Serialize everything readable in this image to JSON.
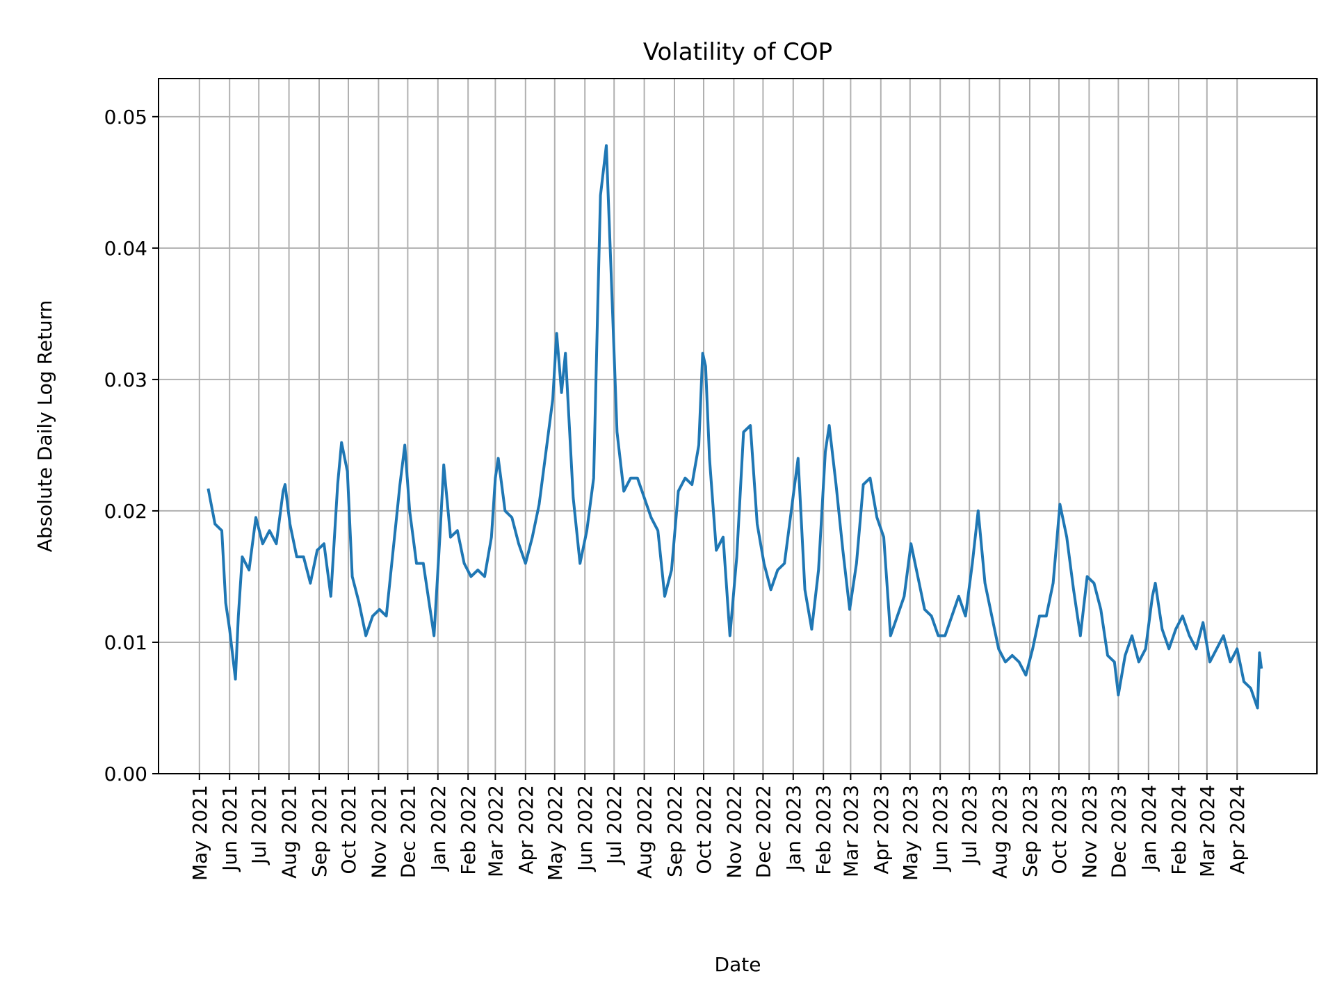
{
  "chart_data": {
    "type": "line",
    "title": "Volatility of COP",
    "xlabel": "Date",
    "ylabel": "Absolute Daily Log Return",
    "xlim": [
      "2021-03-20",
      "2024-06-22"
    ],
    "ylim": [
      0,
      0.0529
    ],
    "grid": true,
    "line_color": "#1f77b4",
    "yticks": [
      {
        "value": 0.0,
        "label": "0.00"
      },
      {
        "value": 0.01,
        "label": "0.01"
      },
      {
        "value": 0.02,
        "label": "0.02"
      },
      {
        "value": 0.03,
        "label": "0.03"
      },
      {
        "value": 0.04,
        "label": "0.04"
      },
      {
        "value": 0.05,
        "label": "0.05"
      }
    ],
    "xticks": [
      {
        "date": "2021-05-01",
        "label": "May 2021"
      },
      {
        "date": "2021-06-01",
        "label": "Jun 2021"
      },
      {
        "date": "2021-07-01",
        "label": "Jul 2021"
      },
      {
        "date": "2021-08-01",
        "label": "Aug 2021"
      },
      {
        "date": "2021-09-01",
        "label": "Sep 2021"
      },
      {
        "date": "2021-10-01",
        "label": "Oct 2021"
      },
      {
        "date": "2021-11-01",
        "label": "Nov 2021"
      },
      {
        "date": "2021-12-01",
        "label": "Dec 2021"
      },
      {
        "date": "2022-01-01",
        "label": "Jan 2022"
      },
      {
        "date": "2022-02-01",
        "label": "Feb 2022"
      },
      {
        "date": "2022-03-01",
        "label": "Mar 2022"
      },
      {
        "date": "2022-04-01",
        "label": "Apr 2022"
      },
      {
        "date": "2022-05-01",
        "label": "May 2022"
      },
      {
        "date": "2022-06-01",
        "label": "Jun 2022"
      },
      {
        "date": "2022-07-01",
        "label": "Jul 2022"
      },
      {
        "date": "2022-08-01",
        "label": "Aug 2022"
      },
      {
        "date": "2022-09-01",
        "label": "Sep 2022"
      },
      {
        "date": "2022-10-01",
        "label": "Oct 2022"
      },
      {
        "date": "2022-11-01",
        "label": "Nov 2022"
      },
      {
        "date": "2022-12-01",
        "label": "Dec 2022"
      },
      {
        "date": "2023-01-01",
        "label": "Jan 2023"
      },
      {
        "date": "2023-02-01",
        "label": "Feb 2023"
      },
      {
        "date": "2023-03-01",
        "label": "Mar 2023"
      },
      {
        "date": "2023-04-01",
        "label": "Apr 2023"
      },
      {
        "date": "2023-05-01",
        "label": "May 2023"
      },
      {
        "date": "2023-06-01",
        "label": "Jun 2023"
      },
      {
        "date": "2023-07-01",
        "label": "Jul 2023"
      },
      {
        "date": "2023-08-01",
        "label": "Aug 2023"
      },
      {
        "date": "2023-09-01",
        "label": "Sep 2023"
      },
      {
        "date": "2023-10-01",
        "label": "Oct 2023"
      },
      {
        "date": "2023-11-01",
        "label": "Nov 2023"
      },
      {
        "date": "2023-12-01",
        "label": "Dec 2023"
      },
      {
        "date": "2024-01-01",
        "label": "Jan 2024"
      },
      {
        "date": "2024-02-01",
        "label": "Feb 2024"
      },
      {
        "date": "2024-03-01",
        "label": "Mar 2024"
      },
      {
        "date": "2024-04-01",
        "label": "Apr 2024"
      }
    ],
    "x": [
      "2021-05-10",
      "2021-05-17",
      "2021-05-24",
      "2021-05-28",
      "2021-06-01",
      "2021-06-07",
      "2021-06-10",
      "2021-06-14",
      "2021-06-21",
      "2021-06-28",
      "2021-07-05",
      "2021-07-12",
      "2021-07-19",
      "2021-07-26",
      "2021-07-28",
      "2021-08-02",
      "2021-08-09",
      "2021-08-16",
      "2021-08-23",
      "2021-08-30",
      "2021-09-06",
      "2021-09-13",
      "2021-09-20",
      "2021-09-24",
      "2021-09-30",
      "2021-10-05",
      "2021-10-12",
      "2021-10-19",
      "2021-10-26",
      "2021-11-02",
      "2021-11-09",
      "2021-11-16",
      "2021-11-23",
      "2021-11-28",
      "2021-12-03",
      "2021-12-10",
      "2021-12-17",
      "2021-12-24",
      "2021-12-28",
      "2022-01-03",
      "2022-01-07",
      "2022-01-14",
      "2022-01-21",
      "2022-01-28",
      "2022-02-04",
      "2022-02-11",
      "2022-02-18",
      "2022-02-25",
      "2022-03-01",
      "2022-03-04",
      "2022-03-11",
      "2022-03-18",
      "2022-03-25",
      "2022-04-01",
      "2022-04-08",
      "2022-04-15",
      "2022-04-22",
      "2022-04-29",
      "2022-05-03",
      "2022-05-08",
      "2022-05-12",
      "2022-05-20",
      "2022-05-27",
      "2022-06-03",
      "2022-06-10",
      "2022-06-14",
      "2022-06-17",
      "2022-06-23",
      "2022-06-28",
      "2022-07-04",
      "2022-07-11",
      "2022-07-18",
      "2022-07-25",
      "2022-08-01",
      "2022-08-08",
      "2022-08-15",
      "2022-08-22",
      "2022-08-29",
      "2022-09-05",
      "2022-09-12",
      "2022-09-19",
      "2022-09-26",
      "2022-09-30",
      "2022-10-03",
      "2022-10-07",
      "2022-10-14",
      "2022-10-21",
      "2022-10-28",
      "2022-11-04",
      "2022-11-11",
      "2022-11-18",
      "2022-11-25",
      "2022-12-02",
      "2022-12-09",
      "2022-12-16",
      "2022-12-23",
      "2022-12-30",
      "2023-01-06",
      "2023-01-13",
      "2023-01-20",
      "2023-01-27",
      "2023-02-03",
      "2023-02-07",
      "2023-02-14",
      "2023-02-21",
      "2023-02-28",
      "2023-03-07",
      "2023-03-14",
      "2023-03-21",
      "2023-03-28",
      "2023-04-04",
      "2023-04-11",
      "2023-04-18",
      "2023-04-25",
      "2023-05-02",
      "2023-05-09",
      "2023-05-16",
      "2023-05-23",
      "2023-05-30",
      "2023-06-06",
      "2023-06-13",
      "2023-06-20",
      "2023-06-27",
      "2023-07-04",
      "2023-07-10",
      "2023-07-17",
      "2023-07-24",
      "2023-07-31",
      "2023-08-07",
      "2023-08-14",
      "2023-08-21",
      "2023-08-28",
      "2023-09-04",
      "2023-09-11",
      "2023-09-18",
      "2023-09-25",
      "2023-10-02",
      "2023-10-09",
      "2023-10-16",
      "2023-10-23",
      "2023-10-30",
      "2023-11-06",
      "2023-11-13",
      "2023-11-20",
      "2023-11-27",
      "2023-12-01",
      "2023-12-08",
      "2023-12-15",
      "2023-12-22",
      "2023-12-29",
      "2024-01-05",
      "2024-01-08",
      "2024-01-15",
      "2024-01-22",
      "2024-01-29",
      "2024-02-05",
      "2024-02-12",
      "2024-02-19",
      "2024-02-26",
      "2024-03-04",
      "2024-03-11",
      "2024-03-18",
      "2024-03-25",
      "2024-04-01",
      "2024-04-08",
      "2024-04-15",
      "2024-04-22",
      "2024-04-24",
      "2024-04-26"
    ],
    "y": [
      0.0217,
      0.019,
      0.0185,
      0.013,
      0.011,
      0.0072,
      0.012,
      0.0165,
      0.0155,
      0.0195,
      0.0175,
      0.0185,
      0.0175,
      0.0215,
      0.022,
      0.019,
      0.0165,
      0.0165,
      0.0145,
      0.017,
      0.0175,
      0.0135,
      0.022,
      0.0252,
      0.023,
      0.015,
      0.013,
      0.0105,
      0.012,
      0.0125,
      0.012,
      0.017,
      0.022,
      0.025,
      0.02,
      0.016,
      0.016,
      0.0125,
      0.0105,
      0.018,
      0.0235,
      0.018,
      0.0185,
      0.016,
      0.015,
      0.0155,
      0.015,
      0.018,
      0.0225,
      0.024,
      0.02,
      0.0195,
      0.0175,
      0.016,
      0.018,
      0.0205,
      0.0245,
      0.0285,
      0.0335,
      0.029,
      0.032,
      0.021,
      0.016,
      0.0185,
      0.0225,
      0.035,
      0.044,
      0.0478,
      0.038,
      0.026,
      0.0215,
      0.0225,
      0.0225,
      0.021,
      0.0195,
      0.0185,
      0.0135,
      0.0155,
      0.0215,
      0.0225,
      0.022,
      0.025,
      0.032,
      0.031,
      0.024,
      0.017,
      0.018,
      0.0105,
      0.0165,
      0.026,
      0.0265,
      0.019,
      0.016,
      0.014,
      0.0155,
      0.016,
      0.02,
      0.024,
      0.014,
      0.011,
      0.0155,
      0.0245,
      0.0265,
      0.022,
      0.017,
      0.0125,
      0.016,
      0.022,
      0.0225,
      0.0195,
      0.018,
      0.0105,
      0.012,
      0.0135,
      0.0175,
      0.015,
      0.0125,
      0.012,
      0.0105,
      0.0105,
      0.012,
      0.0135,
      0.012,
      0.016,
      0.02,
      0.0145,
      0.012,
      0.0095,
      0.0085,
      0.009,
      0.0085,
      0.0075,
      0.0095,
      0.012,
      0.012,
      0.0145,
      0.0205,
      0.018,
      0.014,
      0.0105,
      0.015,
      0.0145,
      0.0125,
      0.009,
      0.0085,
      0.006,
      0.009,
      0.0105,
      0.0085,
      0.0095,
      0.0135,
      0.0145,
      0.011,
      0.0095,
      0.011,
      0.012,
      0.0105,
      0.0095,
      0.0115,
      0.0085,
      0.0095,
      0.0105,
      0.0085,
      0.0095,
      0.007,
      0.0065,
      0.005,
      0.0092,
      0.008
    ]
  }
}
